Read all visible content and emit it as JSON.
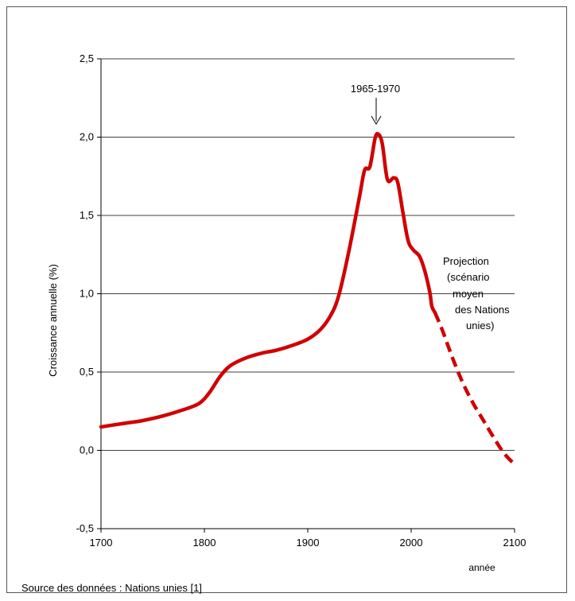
{
  "chart_data": {
    "type": "line",
    "title": "",
    "xlabel": "année",
    "ylabel": "Croissance annuelle (%)",
    "xlim": [
      1700,
      2100
    ],
    "ylim": [
      -0.5,
      2.5
    ],
    "x_ticks": [
      "1700",
      "1800",
      "1900",
      "2000",
      "2100"
    ],
    "y_ticks": [
      "-0,5",
      "0,0",
      "0,5",
      "1,0",
      "1,5",
      "2,0",
      "2,5"
    ],
    "grid": "horizontal",
    "series": [
      {
        "style": "solid",
        "color": "#d10000",
        "x": [
          1700,
          1720,
          1740,
          1760,
          1780,
          1795,
          1805,
          1815,
          1825,
          1840,
          1855,
          1870,
          1885,
          1900,
          1912,
          1922,
          1930,
          1940,
          1950,
          1955,
          1960,
          1965,
          1968,
          1972,
          1977,
          1983,
          1987,
          1992,
          1997,
          2002,
          2008,
          2013,
          2018,
          2020,
          2023
        ],
        "y": [
          0.15,
          0.17,
          0.19,
          0.22,
          0.26,
          0.3,
          0.37,
          0.47,
          0.54,
          0.59,
          0.62,
          0.64,
          0.67,
          0.71,
          0.77,
          0.86,
          0.99,
          1.28,
          1.62,
          1.79,
          1.81,
          1.99,
          2.02,
          1.96,
          1.73,
          1.74,
          1.71,
          1.52,
          1.34,
          1.28,
          1.24,
          1.15,
          1.01,
          0.92,
          0.88
        ]
      },
      {
        "style": "dashed",
        "color": "#d10000",
        "x": [
          2023,
          2030,
          2040,
          2050,
          2060,
          2070,
          2080,
          2090,
          2100
        ],
        "y": [
          0.88,
          0.77,
          0.59,
          0.43,
          0.3,
          0.19,
          0.08,
          -0.02,
          -0.09
        ]
      }
    ],
    "annotations": {
      "peak_label": "1965-1970",
      "peak_x": 1967,
      "peak_y": 2.02,
      "projection_lines": [
        "Projection",
        "(scénario",
        "moyen",
        "des Nations",
        "unies)"
      ]
    },
    "source": "Source des données : Nations unies [1]"
  }
}
